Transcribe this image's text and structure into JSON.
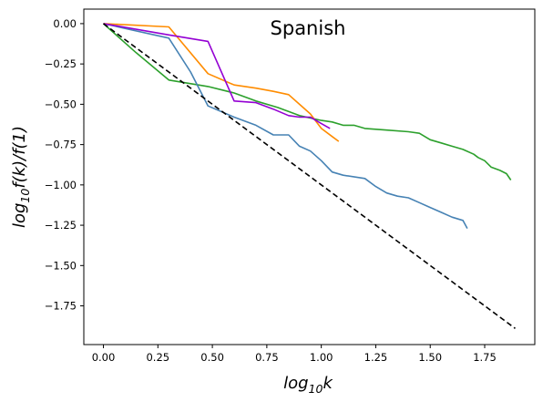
{
  "chart_data": {
    "type": "line",
    "title": "Spanish",
    "xlabel_base": "log",
    "xlabel_sub": "10",
    "xlabel_tail": "k",
    "ylabel_base": "log",
    "ylabel_sub": "10",
    "ylabel_tail": "f(k)/f(1)",
    "xlim": [
      -0.09,
      1.98
    ],
    "ylim": [
      -1.99,
      0.09
    ],
    "x_ticks": [
      0.0,
      0.25,
      0.5,
      0.75,
      1.0,
      1.25,
      1.5,
      1.75
    ],
    "x_tick_labels": [
      "0.00",
      "0.25",
      "0.50",
      "0.75",
      "1.00",
      "1.25",
      "1.50",
      "1.75"
    ],
    "y_ticks": [
      0.0,
      -0.25,
      -0.5,
      -0.75,
      -1.0,
      -1.25,
      -1.5,
      -1.75
    ],
    "y_tick_labels": [
      "0.00",
      "−0.25",
      "−0.50",
      "−0.75",
      "−1.00",
      "−1.25",
      "−1.50",
      "−1.75"
    ],
    "grid": false,
    "series": [
      {
        "color": "#2ca02c",
        "style": "solid",
        "x": [
          0.0,
          0.15,
          0.3,
          0.48,
          0.6,
          0.7,
          0.8,
          0.9,
          1.0,
          1.05,
          1.1,
          1.15,
          1.2,
          1.3,
          1.4,
          1.45,
          1.5,
          1.55,
          1.6,
          1.65,
          1.7,
          1.72,
          1.75,
          1.78,
          1.82,
          1.85,
          1.87
        ],
        "y": [
          0.0,
          -0.18,
          -0.35,
          -0.39,
          -0.43,
          -0.48,
          -0.52,
          -0.57,
          -0.6,
          -0.61,
          -0.63,
          -0.63,
          -0.65,
          -0.66,
          -0.67,
          -0.68,
          -0.72,
          -0.74,
          -0.76,
          -0.78,
          -0.81,
          -0.83,
          -0.85,
          -0.89,
          -0.91,
          -0.93,
          -0.97
        ]
      },
      {
        "color": "#4682b4",
        "style": "solid",
        "x": [
          0.0,
          0.3,
          0.4,
          0.48,
          0.6,
          0.7,
          0.78,
          0.85,
          0.9,
          0.95,
          1.0,
          1.05,
          1.1,
          1.2,
          1.25,
          1.3,
          1.35,
          1.4,
          1.45,
          1.5,
          1.55,
          1.6,
          1.65,
          1.67
        ],
        "y": [
          0.0,
          -0.09,
          -0.3,
          -0.51,
          -0.58,
          -0.63,
          -0.69,
          -0.69,
          -0.76,
          -0.79,
          -0.85,
          -0.92,
          -0.94,
          -0.96,
          -1.01,
          -1.05,
          -1.07,
          -1.08,
          -1.11,
          -1.14,
          -1.17,
          -1.2,
          -1.22,
          -1.27
        ]
      },
      {
        "color": "#ff8c00",
        "style": "solid",
        "x": [
          0.0,
          0.3,
          0.48,
          0.6,
          0.7,
          0.78,
          0.85,
          0.9,
          0.95,
          1.0,
          1.05,
          1.08
        ],
        "y": [
          0.0,
          -0.02,
          -0.31,
          -0.38,
          -0.4,
          -0.42,
          -0.44,
          -0.5,
          -0.56,
          -0.65,
          -0.7,
          -0.73
        ]
      },
      {
        "color": "#9400d3",
        "style": "solid",
        "x": [
          0.0,
          0.3,
          0.48,
          0.6,
          0.7,
          0.78,
          0.85,
          0.9,
          0.95,
          1.0,
          1.04
        ],
        "y": [
          0.0,
          -0.07,
          -0.11,
          -0.48,
          -0.49,
          -0.53,
          -0.57,
          -0.58,
          -0.58,
          -0.62,
          -0.65
        ]
      },
      {
        "color": "#000000",
        "style": "dashed",
        "x": [
          0.0,
          1.89
        ],
        "y": [
          0.0,
          -1.89
        ]
      }
    ]
  }
}
